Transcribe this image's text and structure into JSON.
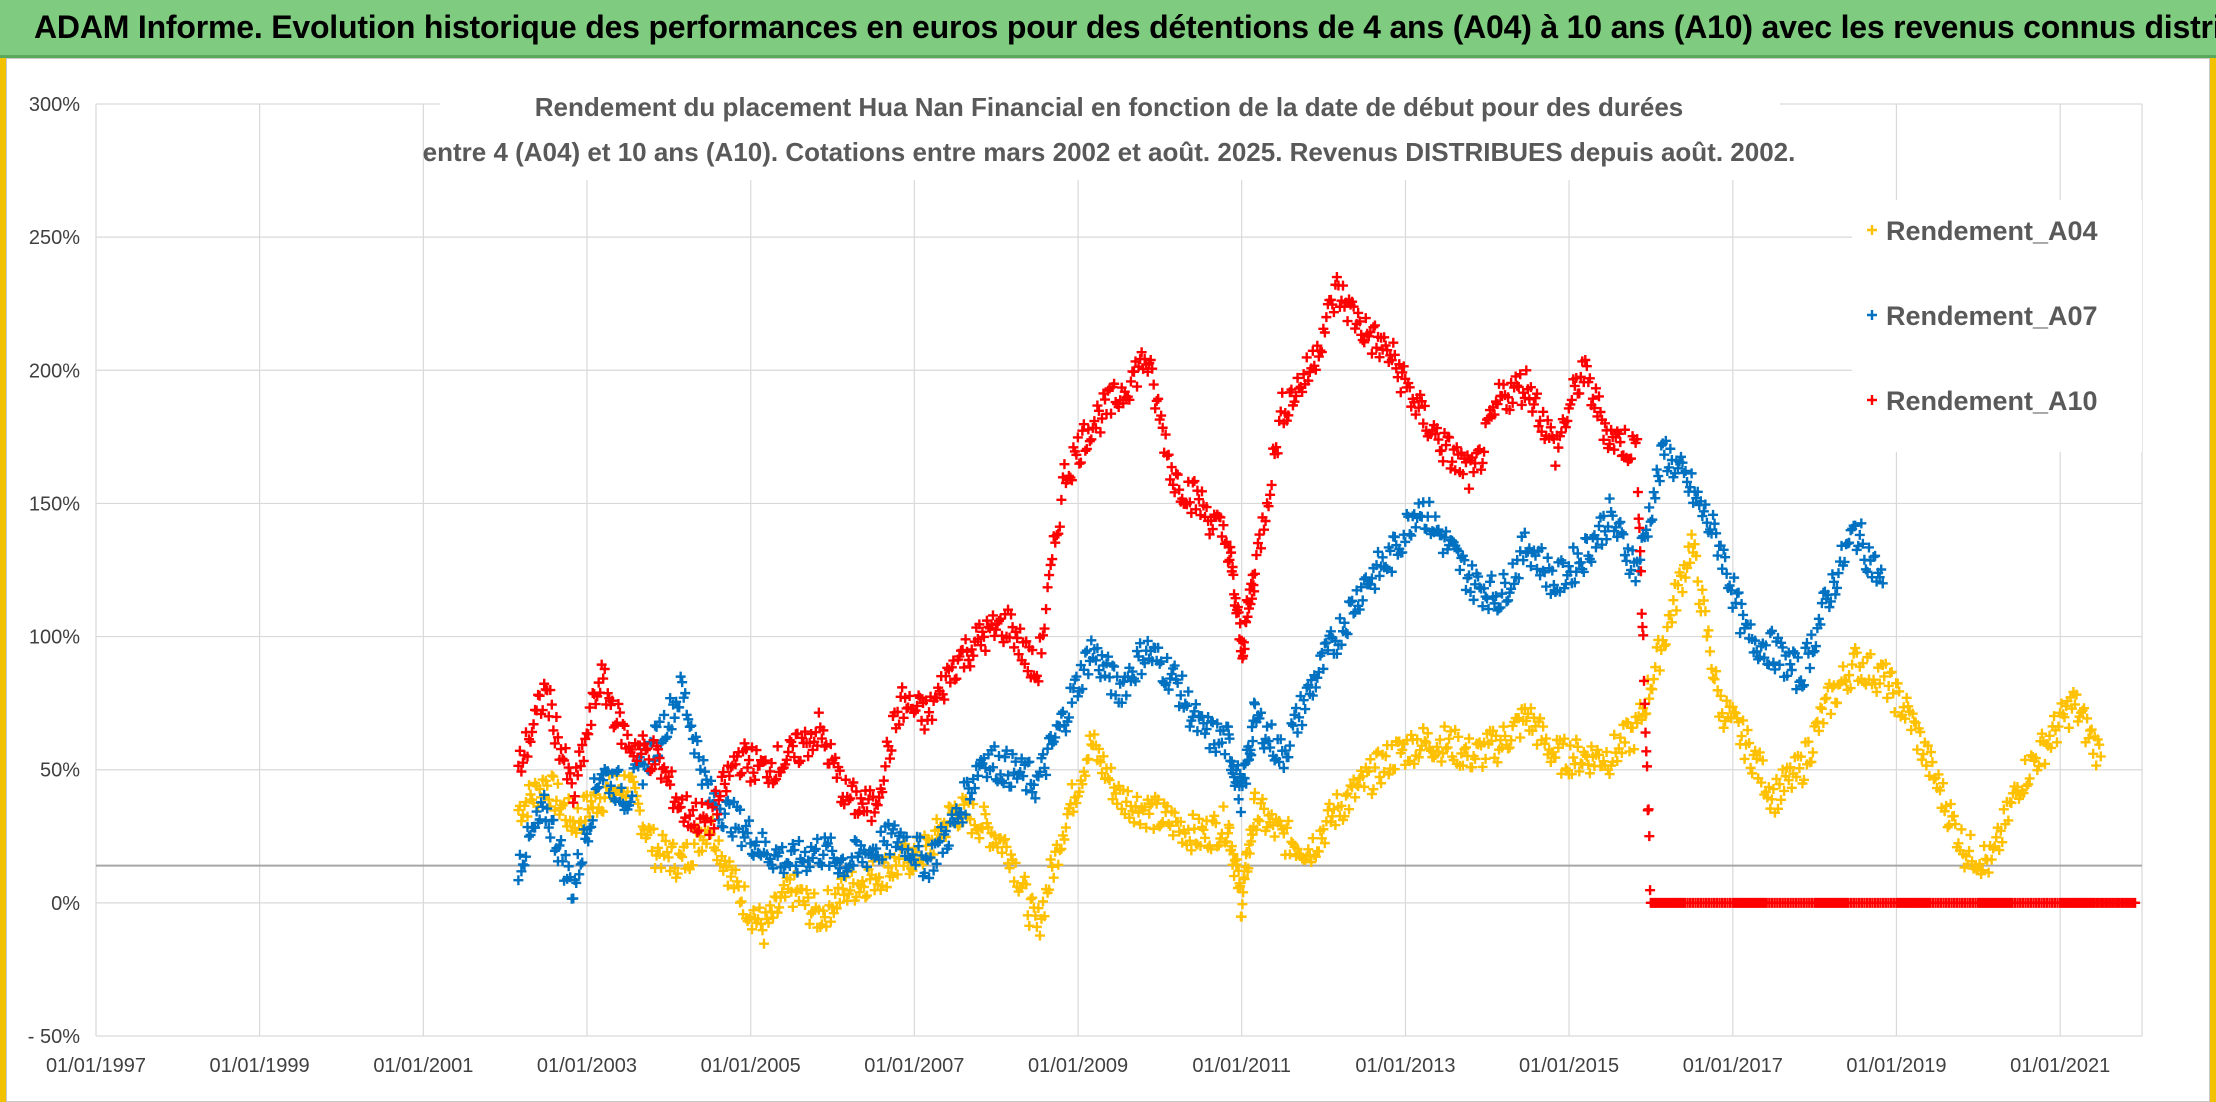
{
  "banner": {
    "title": "ADAM Informe. Evolution historique des performances en euros pour des détentions de 4 ans (A04) à 10 ans (A10) avec les revenus connus distribués"
  },
  "colors": {
    "banner_bg": "#7fcb7f",
    "a04": "#ffc000",
    "a07": "#0070c0",
    "a10": "#ff0000",
    "grid": "#d9d9d9"
  },
  "chart_data": {
    "type": "scatter",
    "title_line1": "Rendement du placement Hua Nan Financial  en fonction de la date de début pour des durées",
    "title_line2": "entre 4 (A04) et 10 ans (A10). Cotations entre mars 2002 et août. 2025. Revenus DISTRIBUES depuis août. 2002.",
    "xlabel": "",
    "ylabel": "",
    "x_ticks": [
      "01/01/1997",
      "01/01/1999",
      "01/01/2001",
      "01/01/2003",
      "01/01/2005",
      "01/01/2007",
      "01/01/2009",
      "01/01/2011",
      "01/01/2013",
      "01/01/2015",
      "01/01/2017",
      "01/01/2019",
      "01/01/2021"
    ],
    "xlim": [
      "1997-01-01",
      "2022-01-01"
    ],
    "y_ticks": [
      "- 50%",
      "0%",
      "50%",
      "100%",
      "150%",
      "200%",
      "250%",
      "300%"
    ],
    "ylim": [
      -0.5,
      3.0
    ],
    "grid": true,
    "legend_position": "top-right",
    "series": [
      {
        "name": "Rendement_A04",
        "color": "#ffc000",
        "x": [
          "2002-03-01",
          "2002-07-01",
          "2002-11-01",
          "2003-03-01",
          "2003-07-01",
          "2003-11-01",
          "2004-03-01",
          "2004-07-01",
          "2004-11-01",
          "2005-03-01",
          "2005-07-01",
          "2005-11-01",
          "2006-03-01",
          "2006-07-01",
          "2006-11-01",
          "2007-03-01",
          "2007-07-01",
          "2007-11-01",
          "2008-03-01",
          "2008-07-01",
          "2008-11-01",
          "2009-03-01",
          "2009-07-01",
          "2009-11-01",
          "2010-03-01",
          "2010-07-01",
          "2010-11-01",
          "2011-01-01",
          "2011-03-01",
          "2011-07-01",
          "2011-11-01",
          "2012-03-01",
          "2012-07-01",
          "2012-11-01",
          "2013-03-01",
          "2013-07-01",
          "2013-11-01",
          "2014-03-01",
          "2014-07-01",
          "2014-11-01",
          "2015-03-01",
          "2015-07-01",
          "2015-11-01",
          "2016-03-01",
          "2016-07-01",
          "2016-11-01",
          "2017-03-01",
          "2017-07-01",
          "2017-11-01",
          "2018-03-01",
          "2018-07-01",
          "2018-11-01",
          "2019-03-01",
          "2019-07-01",
          "2019-11-01",
          "2020-03-01",
          "2020-07-01",
          "2020-11-01",
          "2021-03-01",
          "2021-07-01"
        ],
        "values": [
          0.35,
          0.45,
          0.3,
          0.4,
          0.45,
          0.2,
          0.15,
          0.3,
          0.05,
          -0.1,
          0.05,
          -0.05,
          0.05,
          0.1,
          0.15,
          0.2,
          0.35,
          0.3,
          0.2,
          -0.1,
          0.3,
          0.6,
          0.4,
          0.35,
          0.3,
          0.25,
          0.3,
          0.0,
          0.35,
          0.25,
          0.2,
          0.35,
          0.45,
          0.55,
          0.6,
          0.6,
          0.55,
          0.6,
          0.7,
          0.55,
          0.55,
          0.55,
          0.65,
          1.0,
          1.35,
          0.75,
          0.6,
          0.4,
          0.5,
          0.75,
          0.9,
          0.85,
          0.7,
          0.45,
          0.2,
          0.15,
          0.45,
          0.6,
          0.75,
          0.55
        ]
      },
      {
        "name": "Rendement_A07",
        "color": "#0070c0",
        "x": [
          "2002-03-01",
          "2002-07-01",
          "2002-11-01",
          "2003-03-01",
          "2003-07-01",
          "2003-11-01",
          "2004-03-01",
          "2004-07-01",
          "2004-11-01",
          "2005-03-01",
          "2005-07-01",
          "2005-11-01",
          "2006-03-01",
          "2006-07-01",
          "2006-11-01",
          "2007-03-01",
          "2007-07-01",
          "2007-11-01",
          "2008-03-01",
          "2008-07-01",
          "2008-11-01",
          "2009-03-01",
          "2009-07-01",
          "2009-11-01",
          "2010-03-01",
          "2010-07-01",
          "2010-11-01",
          "2011-01-01",
          "2011-03-01",
          "2011-07-01",
          "2011-11-01",
          "2012-03-01",
          "2012-07-01",
          "2012-11-01",
          "2013-03-01",
          "2013-07-01",
          "2013-11-01",
          "2014-03-01",
          "2014-07-01",
          "2014-11-01",
          "2015-03-01",
          "2015-07-01",
          "2015-11-01",
          "2016-03-01",
          "2016-07-01",
          "2016-11-01",
          "2017-03-01",
          "2017-07-01",
          "2017-11-01",
          "2018-03-01",
          "2018-07-01",
          "2018-11-01"
        ],
        "values": [
          0.15,
          0.35,
          0.05,
          0.5,
          0.4,
          0.6,
          0.8,
          0.4,
          0.3,
          0.2,
          0.15,
          0.2,
          0.15,
          0.2,
          0.25,
          0.15,
          0.3,
          0.55,
          0.5,
          0.45,
          0.7,
          0.95,
          0.8,
          0.95,
          0.85,
          0.65,
          0.6,
          0.4,
          0.7,
          0.55,
          0.8,
          1.0,
          1.2,
          1.3,
          1.5,
          1.35,
          1.2,
          1.15,
          1.35,
          1.2,
          1.3,
          1.45,
          1.25,
          1.7,
          1.55,
          1.35,
          1.0,
          0.95,
          0.85,
          1.15,
          1.4,
          1.2
        ]
      },
      {
        "name": "Rendement_A10",
        "color": "#ff0000",
        "x": [
          "2002-03-01",
          "2002-07-01",
          "2002-11-01",
          "2003-03-01",
          "2003-07-01",
          "2003-11-01",
          "2004-03-01",
          "2004-07-01",
          "2004-11-01",
          "2005-03-01",
          "2005-07-01",
          "2005-11-01",
          "2006-03-01",
          "2006-07-01",
          "2006-11-01",
          "2007-03-01",
          "2007-07-01",
          "2007-11-01",
          "2008-03-01",
          "2008-07-01",
          "2008-11-01",
          "2009-03-01",
          "2009-07-01",
          "2009-11-01",
          "2010-03-01",
          "2010-07-01",
          "2010-11-01",
          "2011-01-01",
          "2011-03-01",
          "2011-07-01",
          "2011-11-01",
          "2012-03-01",
          "2012-07-01",
          "2012-11-01",
          "2013-03-01",
          "2013-07-01",
          "2013-11-01",
          "2014-03-01",
          "2014-07-01",
          "2014-11-01",
          "2015-03-01",
          "2015-07-01",
          "2015-11-01",
          "2016-01-01",
          "2016-06-01",
          "2017-01-01",
          "2017-06-01",
          "2018-01-01",
          "2018-06-01",
          "2019-01-01",
          "2019-06-01",
          "2020-01-01",
          "2020-06-01",
          "2021-01-01",
          "2021-06-01",
          "2021-12-01"
        ],
        "values": [
          0.5,
          0.8,
          0.4,
          0.85,
          0.6,
          0.55,
          0.35,
          0.3,
          0.55,
          0.5,
          0.55,
          0.65,
          0.4,
          0.35,
          0.75,
          0.7,
          0.9,
          1.0,
          1.05,
          0.85,
          1.6,
          1.8,
          1.9,
          2.05,
          1.6,
          1.5,
          1.35,
          0.95,
          1.25,
          1.85,
          2.0,
          2.3,
          2.15,
          2.05,
          1.85,
          1.7,
          1.6,
          1.9,
          1.95,
          1.7,
          2.0,
          1.75,
          1.7,
          0.0,
          0.0,
          0.0,
          0.0,
          0.0,
          0.0,
          0.0,
          0.0,
          0.0,
          0.0,
          0.0,
          0.0,
          0.0
        ]
      }
    ]
  }
}
